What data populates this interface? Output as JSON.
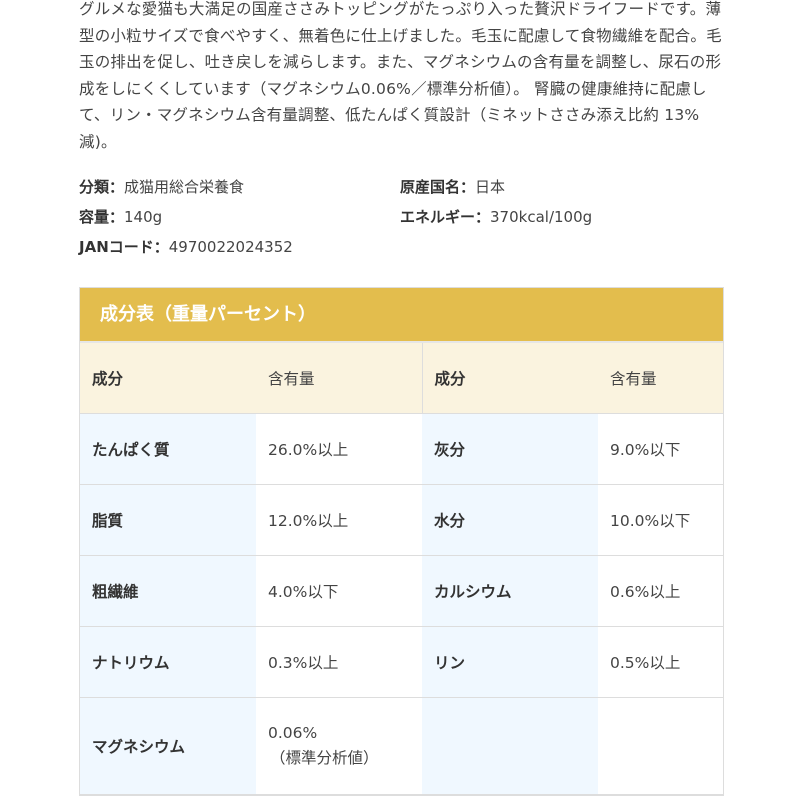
{
  "description": "グルメな愛猫も大満足の国産ささみトッピングがたっぷり入った贅沢ドライフードです。薄型の小粒サイズで食べやすく、無着色に仕上げました。毛玉に配慮して食物繊維を配合。毛玉の排出を促し、吐き戻しを減らします。また、マグネシウムの含有量を調整し、尿石の形成をしにくくしています（マグネシウム0.06%／標準分析値）。 腎臓の健康維持に配慮して、リン・マグネシウム含有量調整、低たんぱく質設計（ミネットささみ添え比約 13%減)。",
  "specs": {
    "category_label": "分類：",
    "category": "成猫用総合栄養食",
    "origin_label": "原産国名：",
    "origin": "日本",
    "capacity_label": "容量：",
    "capacity": "140g",
    "energy_label": "エネルギー：",
    "energy": "370kcal/100g",
    "jan_label": "JANコード：",
    "jan": "4970022024352"
  },
  "table": {
    "title": "成分表（重量パーセント）",
    "headers": [
      "成分",
      "含有量",
      "成分",
      "含有量"
    ],
    "rows": [
      [
        "たんぱく質",
        "26.0%以上",
        "灰分",
        "9.0%以下"
      ],
      [
        "脂質",
        "12.0%以上",
        "水分",
        "10.0%以下"
      ],
      [
        "粗繊維",
        "4.0%以下",
        "カルシウム",
        "0.6%以上"
      ],
      [
        "ナトリウム",
        "0.3%以上",
        "リン",
        "0.5%以上"
      ]
    ],
    "last_row": {
      "name": "マグネシウム",
      "value": "0.06%",
      "note": "（標準分析値）"
    }
  },
  "colors": {
    "title_bg": "#e3bd4d",
    "header_bg": "#faf3df",
    "key_bg": "#f0f8ff"
  }
}
